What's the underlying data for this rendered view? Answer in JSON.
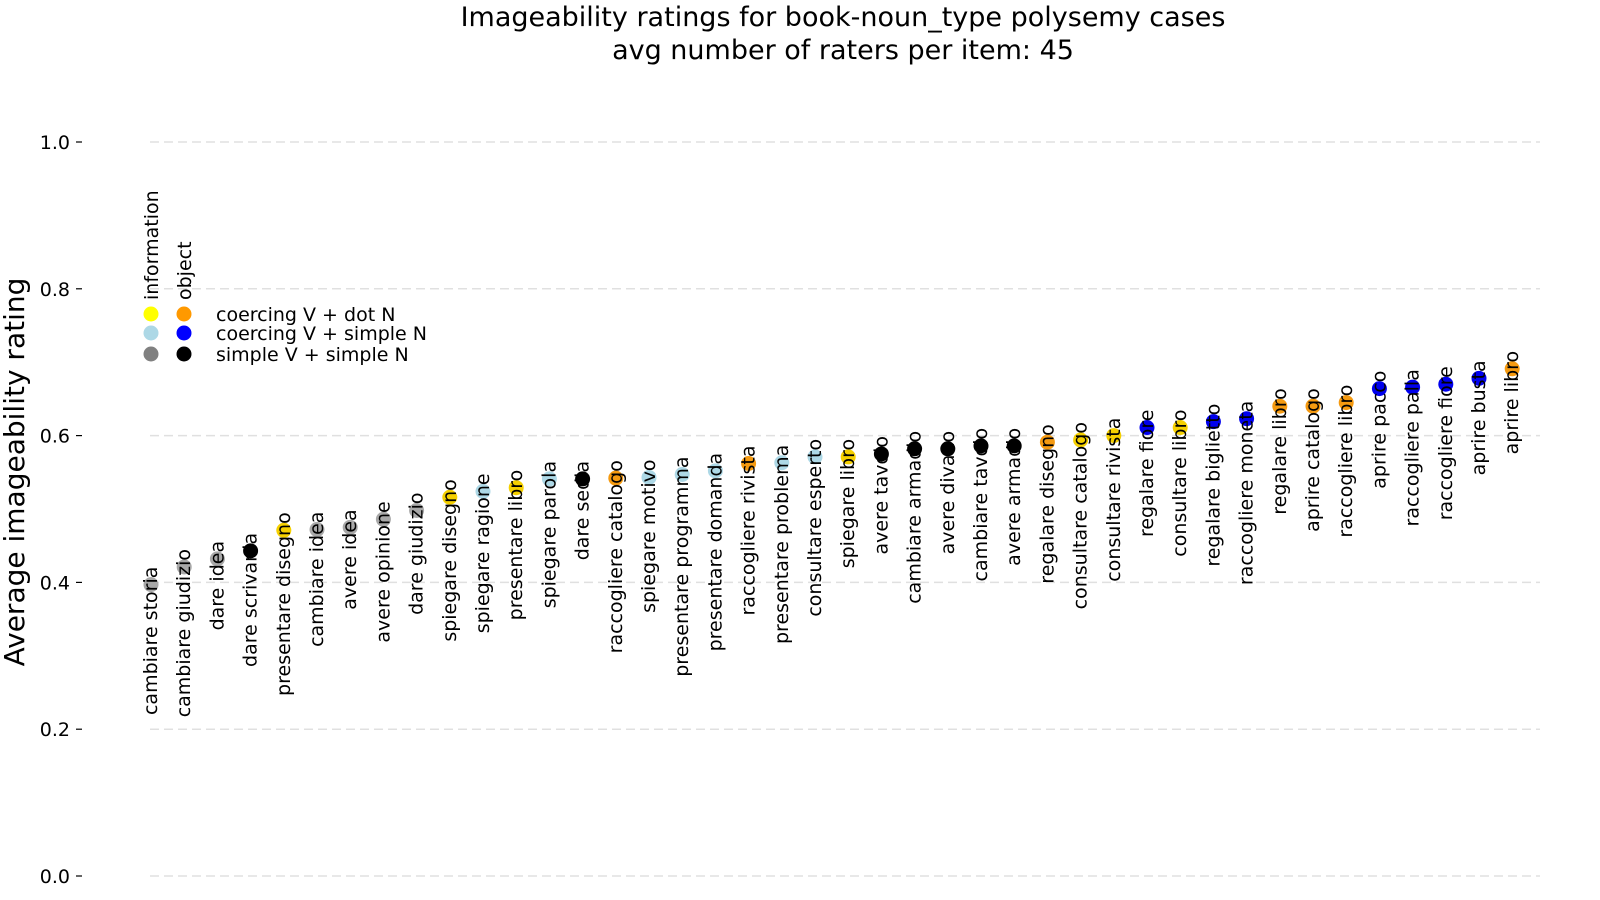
{
  "chart_data": {
    "type": "scatter",
    "title": "Imageability ratings for book-noun_type polysemy cases",
    "subtitle": "avg number of raters per item: 45",
    "xlabel": "",
    "ylabel": "Average imageability rating",
    "ylim": [
      0.0,
      1.0
    ],
    "yticks": [
      "0.0",
      "0.2",
      "0.4",
      "0.6",
      "0.8",
      "1.0"
    ],
    "grid": true,
    "legend": {
      "placement": "upper-left",
      "column_headers": [
        "information",
        "object"
      ],
      "rows": [
        {
          "label": "coercing V + dot N",
          "information_color": "#ffff00",
          "object_color": "#ff9900"
        },
        {
          "label": "coercing V + simple N",
          "information_color": "#add8e6",
          "object_color": "#0000ff"
        },
        {
          "label": "simple V + simple N",
          "information_color": "#808080",
          "object_color": "#000000"
        }
      ]
    },
    "colors": {
      "coercing V + dot N | information": "#f5d000",
      "coercing V + dot N | object": "#f59a10",
      "coercing V + simple N | information": "#add8e6",
      "coercing V + simple N | object": "#0000ee",
      "simple V + simple N | information": "#a8a8a8",
      "simple V + simple N | object": "#000000"
    },
    "points": [
      {
        "label": "cambiare storia",
        "value": 0.397,
        "group": "simple V + simple N | information"
      },
      {
        "label": "cambiare giudizio",
        "value": 0.421,
        "group": "simple V + simple N | information"
      },
      {
        "label": "dare idea",
        "value": 0.432,
        "group": "simple V + simple N | information"
      },
      {
        "label": "dare scrivania",
        "value": 0.443,
        "group": "simple V + simple N | object"
      },
      {
        "label": "presentare disegno",
        "value": 0.471,
        "group": "coercing V + dot N | information"
      },
      {
        "label": "cambiare idea",
        "value": 0.472,
        "group": "simple V + simple N | information"
      },
      {
        "label": "avere idea",
        "value": 0.475,
        "group": "simple V + simple N | information"
      },
      {
        "label": "avere opinione",
        "value": 0.486,
        "group": "simple V + simple N | information"
      },
      {
        "label": "dare giudizio",
        "value": 0.498,
        "group": "simple V + simple N | information"
      },
      {
        "label": "spiegare disegno",
        "value": 0.516,
        "group": "coercing V + dot N | information"
      },
      {
        "label": "spiegare ragione",
        "value": 0.524,
        "group": "coercing V + simple N | information"
      },
      {
        "label": "presentare libro",
        "value": 0.529,
        "group": "coercing V + dot N | information"
      },
      {
        "label": "spiegare parola",
        "value": 0.541,
        "group": "coercing V + simple N | information"
      },
      {
        "label": "dare sedia",
        "value": 0.541,
        "group": "simple V + simple N | object"
      },
      {
        "label": "raccogliere catalogo",
        "value": 0.542,
        "group": "coercing V + dot N | object"
      },
      {
        "label": "spiegare motivo",
        "value": 0.543,
        "group": "coercing V + simple N | information"
      },
      {
        "label": "presentare programma",
        "value": 0.547,
        "group": "coercing V + simple N | information"
      },
      {
        "label": "presentare domanda",
        "value": 0.552,
        "group": "coercing V + simple N | information"
      },
      {
        "label": "raccogliere rivista",
        "value": 0.562,
        "group": "coercing V + dot N | object"
      },
      {
        "label": "presentare problema",
        "value": 0.563,
        "group": "coercing V + simple N | information"
      },
      {
        "label": "consultare esperto",
        "value": 0.571,
        "group": "coercing V + simple N | information"
      },
      {
        "label": "spiegare libro",
        "value": 0.571,
        "group": "coercing V + dot N | information"
      },
      {
        "label": "avere tavolo",
        "value": 0.575,
        "group": "simple V + simple N | object"
      },
      {
        "label": "cambiare armadio",
        "value": 0.582,
        "group": "simple V + simple N | object"
      },
      {
        "label": "avere divano",
        "value": 0.582,
        "group": "simple V + simple N | object"
      },
      {
        "label": "cambiare tavolo",
        "value": 0.586,
        "group": "simple V + simple N | object"
      },
      {
        "label": "avere armadio",
        "value": 0.586,
        "group": "simple V + simple N | object"
      },
      {
        "label": "regalare disegno",
        "value": 0.591,
        "group": "coercing V + dot N | object"
      },
      {
        "label": "consultare catalogo",
        "value": 0.594,
        "group": "coercing V + dot N | information"
      },
      {
        "label": "consultare rivista",
        "value": 0.6,
        "group": "coercing V + dot N | information"
      },
      {
        "label": "regalare fiore",
        "value": 0.611,
        "group": "coercing V + simple N | object"
      },
      {
        "label": "consultare libro",
        "value": 0.611,
        "group": "coercing V + dot N | information"
      },
      {
        "label": "regalare biglietto",
        "value": 0.619,
        "group": "coercing V + simple N | object"
      },
      {
        "label": "raccogliere moneta",
        "value": 0.623,
        "group": "coercing V + simple N | object"
      },
      {
        "label": "regalare libro",
        "value": 0.64,
        "group": "coercing V + dot N | object"
      },
      {
        "label": "aprire catalogo",
        "value": 0.64,
        "group": "coercing V + dot N | object"
      },
      {
        "label": "raccogliere libro",
        "value": 0.645,
        "group": "coercing V + dot N | object"
      },
      {
        "label": "aprire pacco",
        "value": 0.664,
        "group": "coercing V + simple N | object"
      },
      {
        "label": "raccogliere palla",
        "value": 0.666,
        "group": "coercing V + simple N | object"
      },
      {
        "label": "raccogliere fiore",
        "value": 0.67,
        "group": "coercing V + simple N | object"
      },
      {
        "label": "aprire busta",
        "value": 0.678,
        "group": "coercing V + simple N | object"
      },
      {
        "label": "aprire libro",
        "value": 0.691,
        "group": "coercing V + dot N | object"
      }
    ]
  }
}
